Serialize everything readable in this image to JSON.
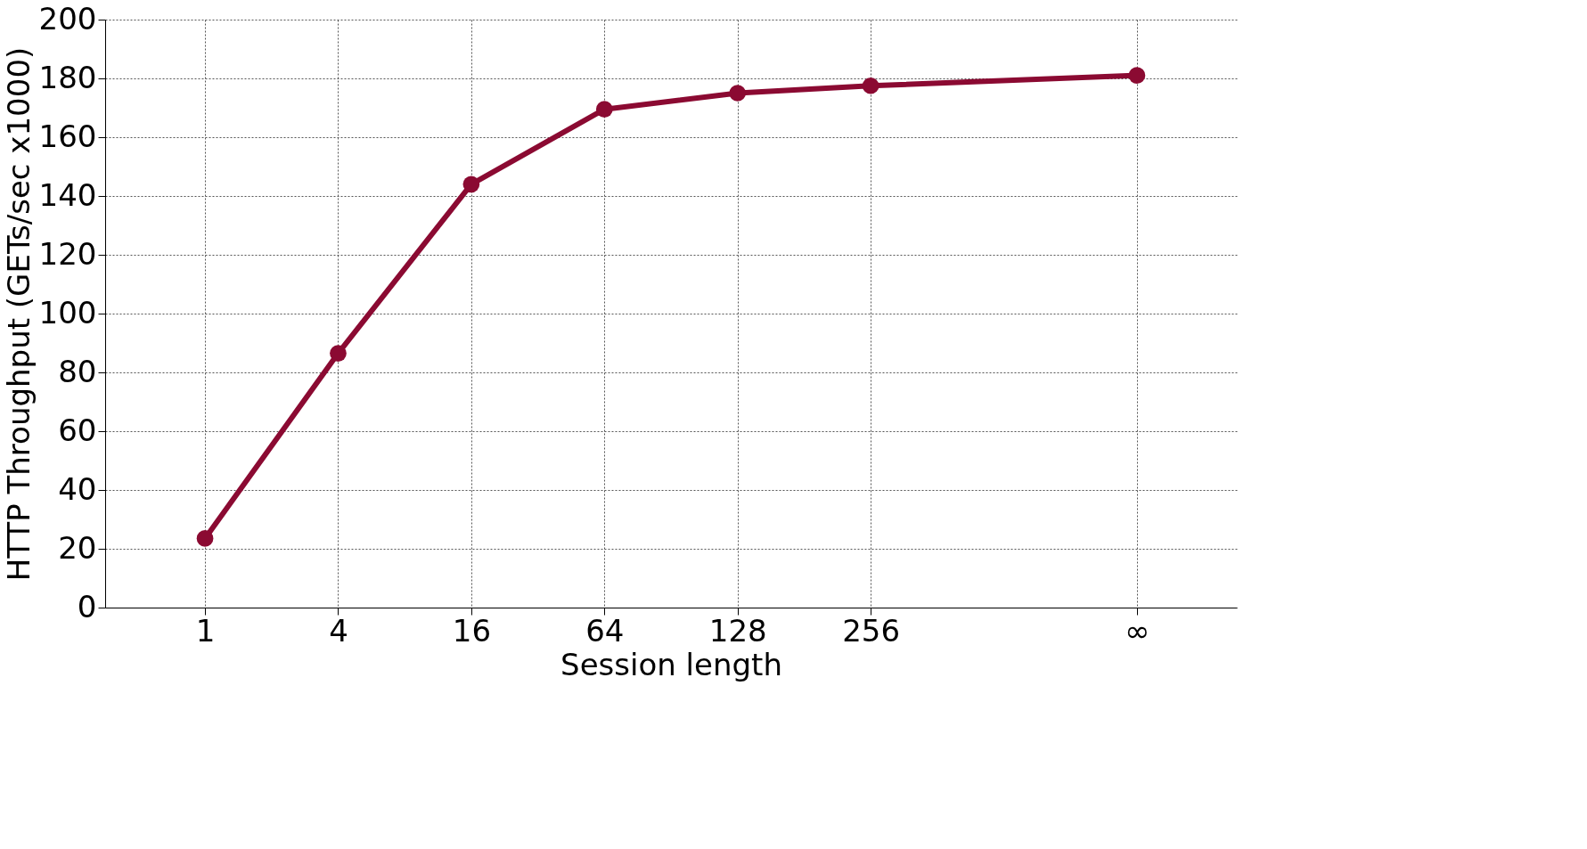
{
  "chart_data": {
    "type": "line",
    "xlabel": "Session length",
    "ylabel": "HTTP Throughput (GETs/sec x1000)",
    "categories": [
      "1",
      "4",
      "16",
      "64",
      "128",
      "256",
      null,
      "∞"
    ],
    "series": [
      {
        "color": "#8b0a32",
        "values": [
          23.5,
          86.5,
          144,
          169.5,
          175,
          177.5,
          null,
          181
        ]
      }
    ],
    "ylim": [
      0,
      200
    ],
    "yticks": [
      0,
      20,
      40,
      60,
      80,
      100,
      120,
      140,
      160,
      180,
      200
    ],
    "grid": true,
    "legend": false,
    "marker": "circle",
    "line_style": "solid"
  }
}
